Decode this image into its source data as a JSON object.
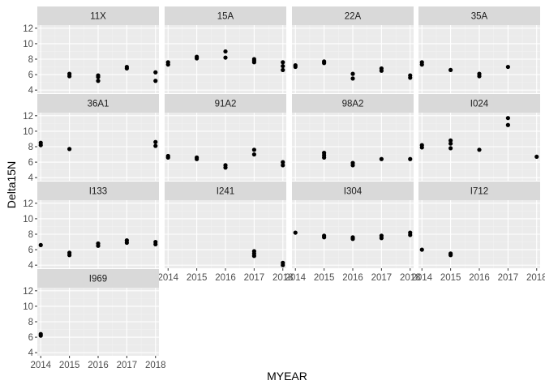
{
  "chart_data": {
    "type": "scatter",
    "title": "",
    "xlabel": "MYEAR",
    "ylabel": "Delta15N",
    "xlim": [
      2013.88,
      2018.12
    ],
    "ylim": [
      3.6,
      12.4
    ],
    "x_ticks": [
      2014,
      2015,
      2016,
      2017,
      2018
    ],
    "y_ticks": [
      4,
      6,
      8,
      10,
      12
    ],
    "grid": true,
    "legend": "none",
    "colors": {
      "panel_bg": "#EBEBEB",
      "strip_bg": "#D9D9D9",
      "grid_major": "#FFFFFF",
      "grid_minor": "#F2F2F2",
      "point": "#000000",
      "tick_text": "#4D4D4D",
      "strip_text": "#1A1A1A"
    },
    "panels": [
      {
        "label": "11X",
        "points": [
          [
            2015,
            5.8
          ],
          [
            2015,
            6.1
          ],
          [
            2016,
            5.2
          ],
          [
            2016,
            5.7
          ],
          [
            2016,
            5.9
          ],
          [
            2017,
            6.8
          ],
          [
            2017,
            7.0
          ],
          [
            2018,
            5.2
          ],
          [
            2018,
            6.3
          ]
        ]
      },
      {
        "label": "15A",
        "points": [
          [
            2014,
            7.3
          ],
          [
            2014,
            7.6
          ],
          [
            2015,
            8.1
          ],
          [
            2015,
            8.3
          ],
          [
            2016,
            8.2
          ],
          [
            2016,
            9.0
          ],
          [
            2017,
            7.6
          ],
          [
            2017,
            7.8
          ],
          [
            2017,
            8.0
          ],
          [
            2018,
            6.6
          ],
          [
            2018,
            7.1
          ],
          [
            2018,
            7.6
          ]
        ]
      },
      {
        "label": "22A",
        "points": [
          [
            2014,
            7.0
          ],
          [
            2014,
            7.2
          ],
          [
            2015,
            7.5
          ],
          [
            2015,
            7.7
          ],
          [
            2016,
            5.5
          ],
          [
            2016,
            6.1
          ],
          [
            2017,
            6.5
          ],
          [
            2017,
            6.8
          ],
          [
            2018,
            5.6
          ],
          [
            2018,
            5.9
          ]
        ]
      },
      {
        "label": "35A",
        "points": [
          [
            2014,
            7.3
          ],
          [
            2014,
            7.6
          ],
          [
            2015,
            6.6
          ],
          [
            2016,
            5.8
          ],
          [
            2016,
            6.1
          ],
          [
            2017,
            7.0
          ]
        ]
      },
      {
        "label": "36A1",
        "points": [
          [
            2014,
            8.2
          ],
          [
            2014,
            8.5
          ],
          [
            2015,
            7.7
          ],
          [
            2018,
            8.1
          ],
          [
            2018,
            8.6
          ]
        ]
      },
      {
        "label": "91A2",
        "points": [
          [
            2014,
            6.6
          ],
          [
            2014,
            6.8
          ],
          [
            2015,
            6.4
          ],
          [
            2015,
            6.6
          ],
          [
            2016,
            5.3
          ],
          [
            2016,
            5.6
          ],
          [
            2017,
            7.0
          ],
          [
            2017,
            7.6
          ],
          [
            2018,
            5.6
          ],
          [
            2018,
            6.0
          ]
        ]
      },
      {
        "label": "98A2",
        "points": [
          [
            2015,
            6.6
          ],
          [
            2015,
            6.9
          ],
          [
            2015,
            7.2
          ],
          [
            2016,
            5.6
          ],
          [
            2016,
            5.9
          ],
          [
            2017,
            6.4
          ],
          [
            2018,
            6.4
          ]
        ]
      },
      {
        "label": "I024",
        "points": [
          [
            2014,
            7.9
          ],
          [
            2014,
            8.2
          ],
          [
            2015,
            7.8
          ],
          [
            2015,
            8.4
          ],
          [
            2015,
            8.8
          ],
          [
            2016,
            7.6
          ],
          [
            2017,
            10.8
          ],
          [
            2017,
            11.7
          ],
          [
            2018,
            6.7
          ]
        ]
      },
      {
        "label": "I133",
        "points": [
          [
            2014,
            6.6
          ],
          [
            2015,
            5.3
          ],
          [
            2015,
            5.6
          ],
          [
            2016,
            6.5
          ],
          [
            2016,
            6.8
          ],
          [
            2017,
            6.9
          ],
          [
            2017,
            7.2
          ],
          [
            2018,
            6.7
          ],
          [
            2018,
            7.0
          ]
        ]
      },
      {
        "label": "I241",
        "points": [
          [
            2017,
            5.2
          ],
          [
            2017,
            5.5
          ],
          [
            2017,
            5.8
          ],
          [
            2018,
            4.0
          ],
          [
            2018,
            4.3
          ]
        ]
      },
      {
        "label": "I304",
        "points": [
          [
            2014,
            8.2
          ],
          [
            2015,
            7.6
          ],
          [
            2015,
            7.8
          ],
          [
            2016,
            7.4
          ],
          [
            2016,
            7.6
          ],
          [
            2017,
            7.5
          ],
          [
            2017,
            7.8
          ],
          [
            2018,
            7.9
          ],
          [
            2018,
            8.2
          ]
        ]
      },
      {
        "label": "I712",
        "points": [
          [
            2014,
            6.0
          ],
          [
            2015,
            5.3
          ],
          [
            2015,
            5.5
          ]
        ]
      },
      {
        "label": "I969",
        "points": [
          [
            2014,
            6.2
          ],
          [
            2014,
            6.4
          ]
        ]
      }
    ]
  }
}
